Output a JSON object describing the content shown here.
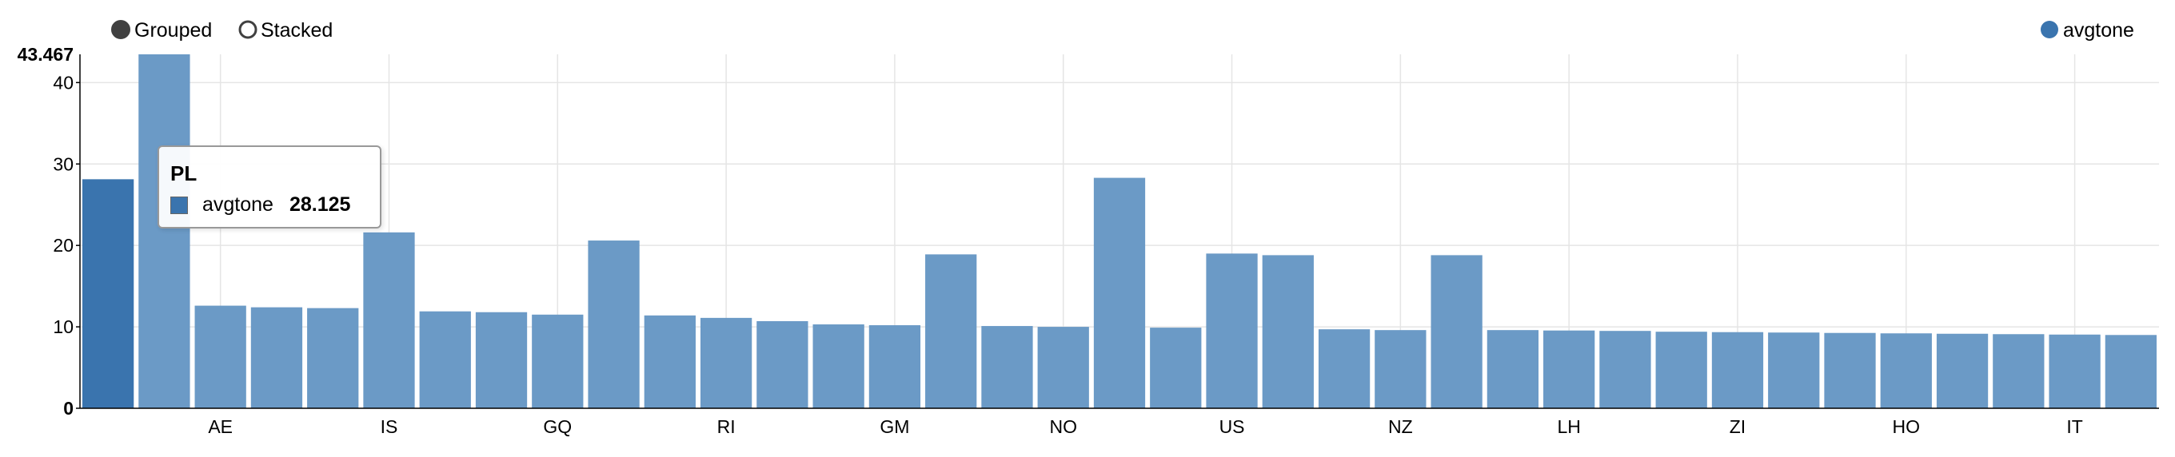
{
  "controls": {
    "grouped_label": "Grouped",
    "stacked_label": "Stacked",
    "selected": "Grouped"
  },
  "legend": {
    "series_label": "avgtone",
    "placement": "top-right"
  },
  "tooltip": {
    "title": "PL",
    "series": "avgtone",
    "value": "28.125"
  },
  "colors": {
    "bar": "#6b9ac6",
    "bar_hover": "#3a74ae",
    "legend_dot": "#3a74ae"
  },
  "chart_data": {
    "type": "bar",
    "title": "",
    "xlabel": "",
    "ylabel": "",
    "ylim": [
      0,
      43.467
    ],
    "y_max_label": "43.467",
    "y_ticks": [
      0,
      10,
      20,
      30,
      40
    ],
    "grid": true,
    "hovered_index": 0,
    "visible_x_labels": [
      "AE",
      "IS",
      "GQ",
      "RI",
      "GM",
      "NO",
      "US",
      "NZ",
      "LH",
      "ZI",
      "HO",
      "IT"
    ],
    "visible_x_label_indices": [
      2,
      5,
      8,
      11,
      14,
      17,
      20,
      23,
      26,
      29,
      32,
      35
    ],
    "series": [
      {
        "name": "avgtone",
        "values": [
          28.125,
          43.467,
          12.6,
          12.4,
          12.3,
          21.6,
          11.9,
          11.8,
          11.5,
          20.6,
          11.4,
          11.1,
          10.7,
          10.3,
          10.2,
          18.9,
          10.1,
          10.0,
          28.3,
          9.9,
          19.0,
          18.8,
          9.7,
          9.6,
          18.8,
          9.6,
          9.55,
          9.5,
          9.4,
          9.35,
          9.3,
          9.25,
          9.2,
          9.15,
          9.1,
          9.05,
          9.0
        ]
      }
    ]
  }
}
